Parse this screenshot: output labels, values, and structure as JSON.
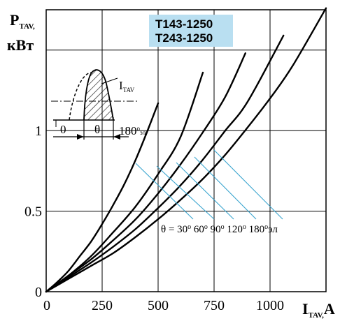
{
  "chart_data": {
    "type": "line",
    "ylabel": "P",
    "ylabel_sub": "TAV,",
    "ylabel_unit": "кВт",
    "xlabel": "I",
    "xlabel_sub": "TAV,",
    "xlabel_unit": "A",
    "xlim": [
      0,
      1250
    ],
    "ylim": [
      0,
      1.75
    ],
    "x_ticks": [
      {
        "value": 0,
        "label": "0"
      },
      {
        "value": 250,
        "label": "250"
      },
      {
        "value": 500,
        "label": "500"
      },
      {
        "value": 750,
        "label": "750"
      },
      {
        "value": 1000,
        "label": "1000"
      }
    ],
    "y_ticks": [
      {
        "value": 0,
        "label": "0"
      },
      {
        "value": 0.5,
        "label": "0.5"
      },
      {
        "value": 1,
        "label": "1"
      }
    ],
    "grid": true,
    "model_labels": [
      "T143-1250",
      "T243-1250"
    ],
    "series": [
      {
        "name": "30",
        "x": [
          0,
          50,
          100,
          150,
          200,
          250,
          300,
          350,
          400,
          450,
          500
        ],
        "y": [
          0,
          0.06,
          0.13,
          0.22,
          0.31,
          0.42,
          0.54,
          0.67,
          0.82,
          0.99,
          1.17
        ]
      },
      {
        "name": "60",
        "x": [
          0,
          100,
          200,
          300,
          400,
          500,
          600,
          700
        ],
        "y": [
          0,
          0.1,
          0.22,
          0.37,
          0.53,
          0.73,
          0.96,
          1.36
        ]
      },
      {
        "name": "90",
        "x": [
          0,
          100,
          200,
          300,
          400,
          500,
          600,
          700,
          800,
          890
        ],
        "y": [
          0,
          0.1,
          0.2,
          0.32,
          0.45,
          0.61,
          0.79,
          0.99,
          1.21,
          1.48
        ]
      },
      {
        "name": "120",
        "x": [
          0,
          100,
          200,
          300,
          400,
          500,
          600,
          700,
          800,
          900,
          1060
        ],
        "y": [
          0,
          0.09,
          0.18,
          0.28,
          0.39,
          0.52,
          0.66,
          0.82,
          1.0,
          1.18,
          1.59
        ]
      },
      {
        "name": "180",
        "x": [
          0,
          100,
          200,
          300,
          400,
          500,
          600,
          700,
          800,
          900,
          1000,
          1100,
          1250
        ],
        "y": [
          0,
          0.08,
          0.16,
          0.24,
          0.34,
          0.45,
          0.57,
          0.7,
          0.85,
          1.02,
          1.2,
          1.4,
          1.76
        ]
      }
    ],
    "annotation": {
      "theta": "θ",
      "equals": " = ",
      "degree": "o",
      "labels": [
        "30",
        "60",
        "90",
        "120",
        "180"
      ],
      "unit": "эл"
    },
    "inset": {
      "current_label": "I",
      "current_sub": "TAV",
      "zero": "0",
      "theta": "θ",
      "angle": "180",
      "angle_degree": "o",
      "angle_unit": "эл."
    }
  },
  "colors": {
    "curve": "#000000",
    "leader": "#3aa5cf",
    "model_box": "#b9dff1",
    "grid": "#000000"
  }
}
